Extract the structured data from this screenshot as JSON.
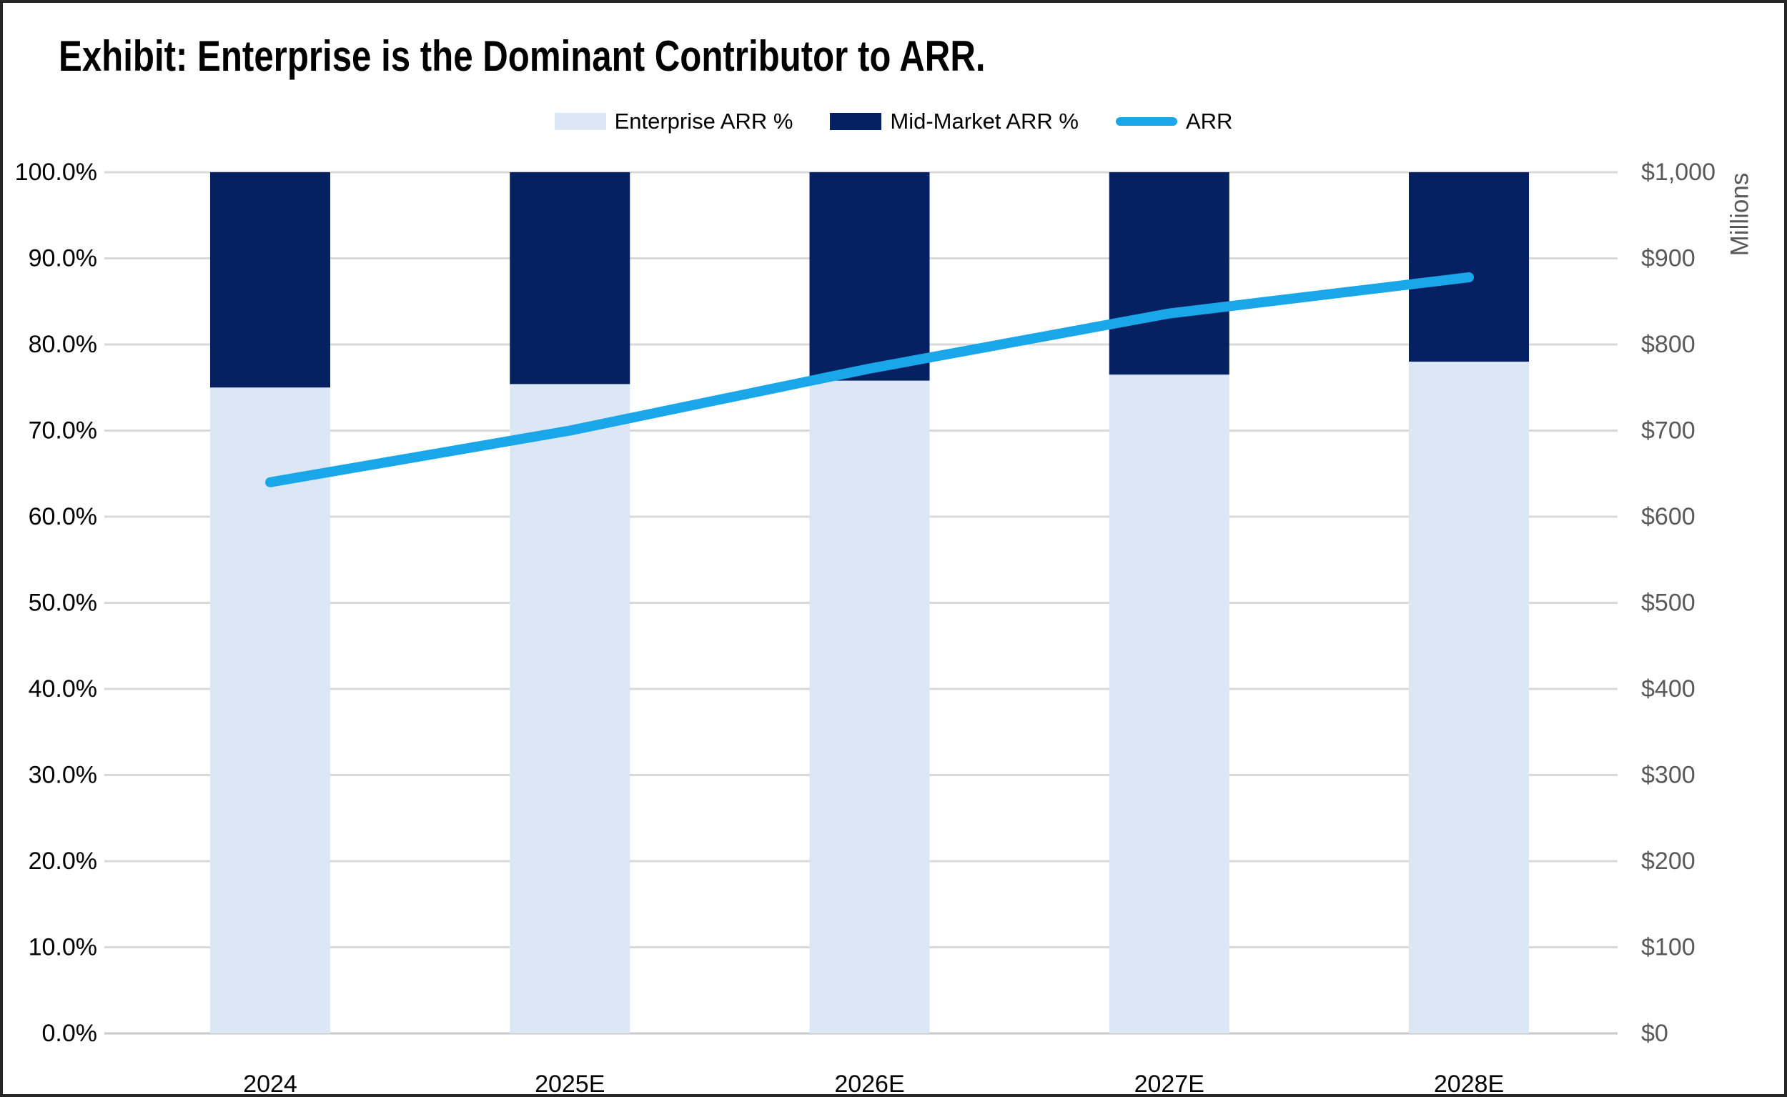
{
  "title": "Exhibit: Enterprise is the Dominant Contributor to ARR.",
  "legend": [
    {
      "label": "Enterprise ARR %",
      "swatch": "box",
      "color": "#DCE7F5"
    },
    {
      "label": "Mid-Market ARR %",
      "swatch": "box",
      "color": "#062162"
    },
    {
      "label": "ARR",
      "swatch": "line",
      "color": "#1AA7E9"
    }
  ],
  "chart_data": {
    "type": "combo-stacked-bar-line",
    "categories": [
      "2024",
      "2025E",
      "2026E",
      "2027E",
      "2028E"
    ],
    "series": [
      {
        "name": "Enterprise ARR %",
        "type": "bar",
        "stack": "arr-mix",
        "axis": "left",
        "color": "#DCE7F5",
        "values": [
          75.0,
          75.4,
          75.8,
          76.5,
          78.0
        ]
      },
      {
        "name": "Mid-Market ARR %",
        "type": "bar",
        "stack": "arr-mix",
        "axis": "left",
        "color": "#062162",
        "values": [
          25.0,
          24.6,
          24.2,
          23.5,
          22.0
        ]
      },
      {
        "name": "ARR",
        "type": "line",
        "axis": "right",
        "color": "#1AA7E9",
        "values_millions": [
          640,
          700,
          772,
          836,
          878
        ]
      }
    ],
    "left_axis": {
      "min": 0,
      "max": 100,
      "step": 10,
      "tick_labels_top_to_bottom": [
        "100.0%",
        "90.0%",
        "80.0%",
        "70.0%",
        "60.0%",
        "50.0%",
        "40.0%",
        "30.0%",
        "20.0%",
        "10.0%",
        "0.0%"
      ]
    },
    "right_axis": {
      "title": "Millions",
      "min": 0,
      "max": 1000,
      "step": 100,
      "tick_labels_top_to_bottom": [
        "$1,000",
        "$900",
        "$800",
        "$700",
        "$600",
        "$500",
        "$400",
        "$300",
        "$200",
        "$100",
        "$0"
      ]
    },
    "grid": true,
    "legend_position": "top-center",
    "colors": {
      "gridline": "#D9D9D9",
      "baseline": "#C9C9C9",
      "left_tick_text": "#000000",
      "right_tick_text": "#595959",
      "x_tick_text": "#000000"
    }
  }
}
